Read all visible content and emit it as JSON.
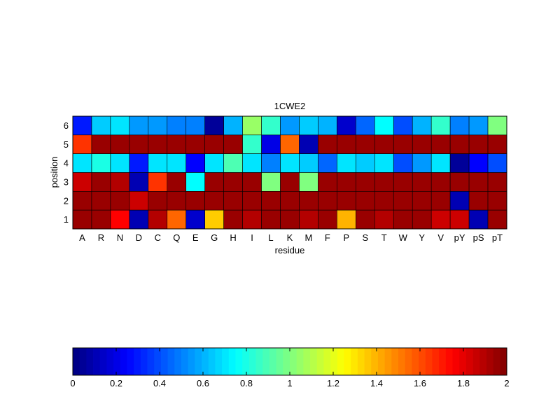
{
  "chart_data": {
    "type": "heatmap",
    "title": "1CWE2",
    "xlabel": "residue",
    "ylabel": "position",
    "x_categories": [
      "A",
      "R",
      "N",
      "D",
      "C",
      "Q",
      "E",
      "G",
      "H",
      "I",
      "L",
      "K",
      "M",
      "F",
      "P",
      "S",
      "T",
      "W",
      "Y",
      "V",
      "pY",
      "pS",
      "pT"
    ],
    "y_categories": [
      "6",
      "5",
      "4",
      "3",
      "2",
      "1"
    ],
    "values": [
      [
        0.3,
        0.65,
        0.7,
        0.55,
        0.55,
        0.5,
        0.5,
        0.05,
        0.6,
        1.05,
        0.85,
        0.55,
        0.65,
        0.6,
        0.15,
        0.45,
        0.75,
        0.4,
        0.6,
        0.85,
        0.5,
        0.55,
        1.0
      ],
      [
        1.65,
        1.95,
        1.95,
        1.95,
        1.95,
        1.95,
        1.95,
        1.95,
        1.95,
        0.85,
        0.2,
        1.55,
        0.1,
        1.95,
        1.95,
        1.95,
        1.95,
        1.95,
        1.95,
        1.95,
        1.95,
        1.95,
        1.95
      ],
      [
        0.7,
        0.8,
        0.7,
        0.3,
        0.7,
        0.7,
        0.25,
        0.7,
        0.9,
        0.7,
        0.5,
        0.7,
        0.65,
        0.45,
        0.7,
        0.65,
        0.7,
        0.4,
        0.55,
        0.7,
        0.05,
        0.25,
        0.4
      ],
      [
        1.85,
        1.95,
        1.9,
        0.1,
        1.65,
        1.95,
        0.75,
        1.95,
        1.95,
        1.95,
        1.0,
        1.95,
        1.0,
        1.95,
        1.95,
        1.95,
        1.95,
        1.95,
        1.95,
        1.95,
        1.95,
        1.95,
        1.95
      ],
      [
        1.95,
        1.95,
        1.95,
        1.85,
        1.95,
        1.95,
        1.95,
        1.95,
        1.95,
        1.95,
        1.95,
        1.95,
        1.95,
        1.95,
        1.95,
        1.95,
        1.95,
        1.95,
        1.95,
        1.95,
        0.1,
        1.95,
        1.95
      ],
      [
        1.95,
        1.95,
        1.75,
        0.1,
        1.9,
        1.55,
        0.15,
        1.35,
        1.95,
        1.9,
        1.95,
        1.95,
        1.9,
        1.95,
        1.4,
        1.95,
        1.9,
        1.95,
        1.95,
        1.85,
        1.85,
        0.1,
        1.95
      ]
    ],
    "colorbar": {
      "colormap": "jet",
      "range": [
        0,
        2
      ],
      "tick_labels": [
        "0",
        "0.2",
        "0.4",
        "0.6",
        "0.8",
        "1",
        "1.2",
        "1.4",
        "1.6",
        "1.8",
        "2"
      ],
      "placement": "bottom"
    },
    "grid": true
  }
}
